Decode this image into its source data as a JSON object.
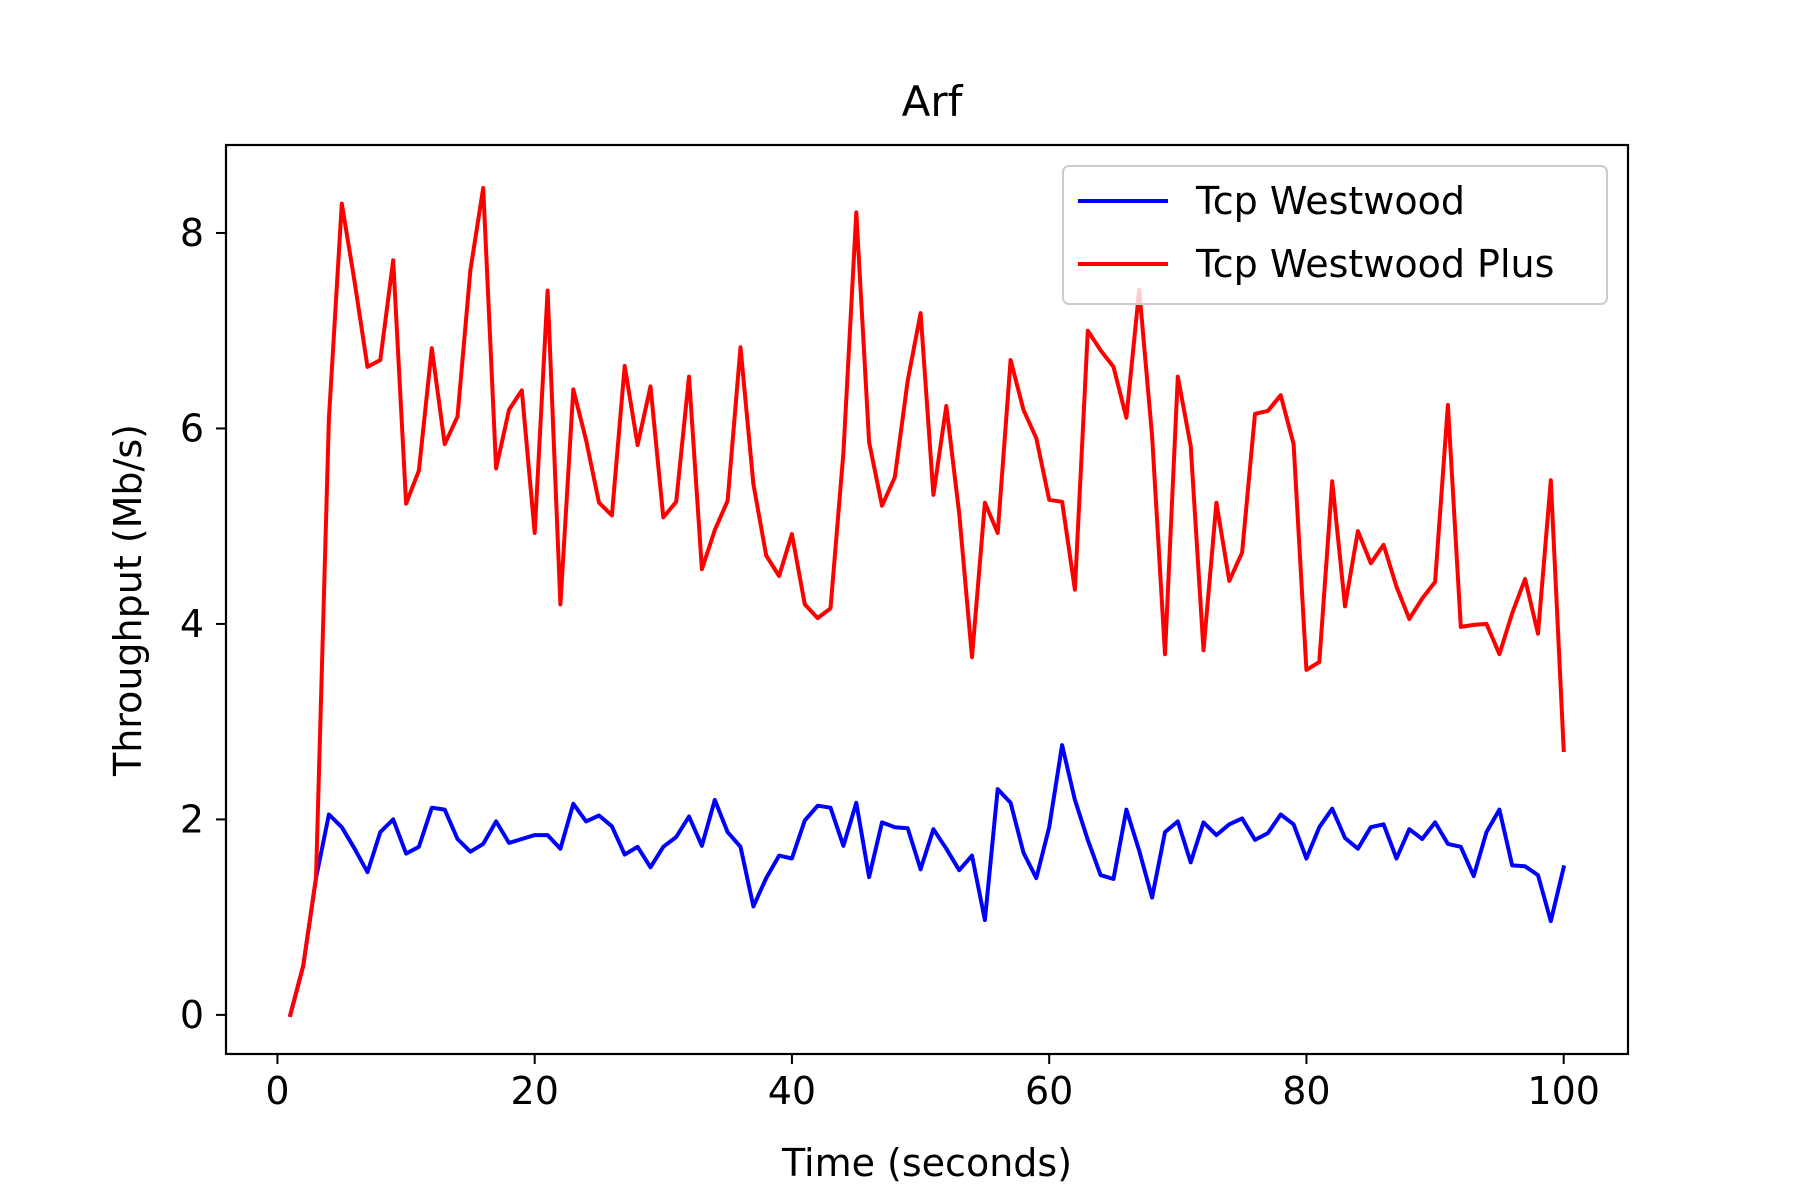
{
  "chart_data": {
    "type": "line",
    "title": "Arf",
    "xlabel": "Time (seconds)",
    "ylabel": "Throughput (Mb/s)",
    "xlim": [
      -4,
      105
    ],
    "ylim": [
      -0.4,
      8.9
    ],
    "xticks": [
      0,
      20,
      40,
      60,
      80,
      100
    ],
    "yticks": [
      0,
      2,
      4,
      6,
      8
    ],
    "grid": false,
    "legend_position": "top-right",
    "x": [
      1,
      2,
      3,
      4,
      5,
      6,
      7,
      8,
      9,
      10,
      11,
      12,
      13,
      14,
      15,
      16,
      17,
      18,
      19,
      20,
      21,
      22,
      23,
      24,
      25,
      26,
      27,
      28,
      29,
      30,
      31,
      32,
      33,
      34,
      35,
      36,
      37,
      38,
      39,
      40,
      41,
      42,
      43,
      44,
      45,
      46,
      47,
      48,
      49,
      50,
      51,
      52,
      53,
      54,
      55,
      56,
      57,
      58,
      59,
      60,
      61,
      62,
      63,
      64,
      65,
      66,
      67,
      68,
      69,
      70,
      71,
      72,
      73,
      74,
      75,
      76,
      77,
      78,
      79,
      80,
      81,
      82,
      83,
      84,
      85,
      86,
      87,
      88,
      89,
      90,
      91,
      92,
      93,
      94,
      95,
      96,
      97,
      98,
      99,
      100
    ],
    "series": [
      {
        "name": "Tcp Westwood",
        "color": "#0000ff",
        "values": [
          0.0,
          0.5,
          1.4,
          2.05,
          1.92,
          1.7,
          1.46,
          1.87,
          2.0,
          1.65,
          1.72,
          2.12,
          2.1,
          1.8,
          1.67,
          1.75,
          1.98,
          1.76,
          1.8,
          1.84,
          1.84,
          1.7,
          2.16,
          1.98,
          2.04,
          1.93,
          1.64,
          1.72,
          1.51,
          1.72,
          1.82,
          2.03,
          1.73,
          2.2,
          1.87,
          1.72,
          1.11,
          1.4,
          1.63,
          1.6,
          1.99,
          2.14,
          2.12,
          1.73,
          2.17,
          1.41,
          1.97,
          1.92,
          1.91,
          1.49,
          1.9,
          1.7,
          1.48,
          1.63,
          0.97,
          2.31,
          2.17,
          1.66,
          1.4,
          1.92,
          2.76,
          2.2,
          1.79,
          1.43,
          1.39,
          2.1,
          1.68,
          1.2,
          1.87,
          1.98,
          1.56,
          1.97,
          1.84,
          1.95,
          2.01,
          1.79,
          1.86,
          2.05,
          1.95,
          1.6,
          1.92,
          2.11,
          1.81,
          1.7,
          1.92,
          1.95,
          1.6,
          1.9,
          1.8,
          1.97,
          1.75,
          1.72,
          1.42,
          1.87,
          2.1,
          1.53,
          1.52,
          1.43,
          0.96,
          1.51
        ]
      },
      {
        "name": "Tcp Westwood Plus",
        "color": "#ff0000",
        "values": [
          0.0,
          0.5,
          1.4,
          6.1,
          8.3,
          7.5,
          6.63,
          6.7,
          7.72,
          5.23,
          5.57,
          6.82,
          5.84,
          6.12,
          7.62,
          8.46,
          5.59,
          6.19,
          6.39,
          4.93,
          7.41,
          4.2,
          6.4,
          5.88,
          5.24,
          5.11,
          6.64,
          5.83,
          6.43,
          5.09,
          5.25,
          6.53,
          4.56,
          4.96,
          5.26,
          6.83,
          5.43,
          4.7,
          4.49,
          4.92,
          4.2,
          4.06,
          4.16,
          5.75,
          8.21,
          5.86,
          5.21,
          5.5,
          6.49,
          7.18,
          5.32,
          6.23,
          5.13,
          3.66,
          5.24,
          4.93,
          6.7,
          6.19,
          5.9,
          5.27,
          5.25,
          4.35,
          7.0,
          6.8,
          6.63,
          6.11,
          7.42,
          5.92,
          3.69,
          6.53,
          5.82,
          3.73,
          5.24,
          4.44,
          4.73,
          6.15,
          6.18,
          6.34,
          5.84,
          3.53,
          3.61,
          5.46,
          4.18,
          4.95,
          4.62,
          4.81,
          4.38,
          4.05,
          4.26,
          4.43,
          6.24,
          3.97,
          3.99,
          4.0,
          3.69,
          4.11,
          4.46,
          3.9,
          5.47,
          2.71
        ]
      }
    ]
  }
}
